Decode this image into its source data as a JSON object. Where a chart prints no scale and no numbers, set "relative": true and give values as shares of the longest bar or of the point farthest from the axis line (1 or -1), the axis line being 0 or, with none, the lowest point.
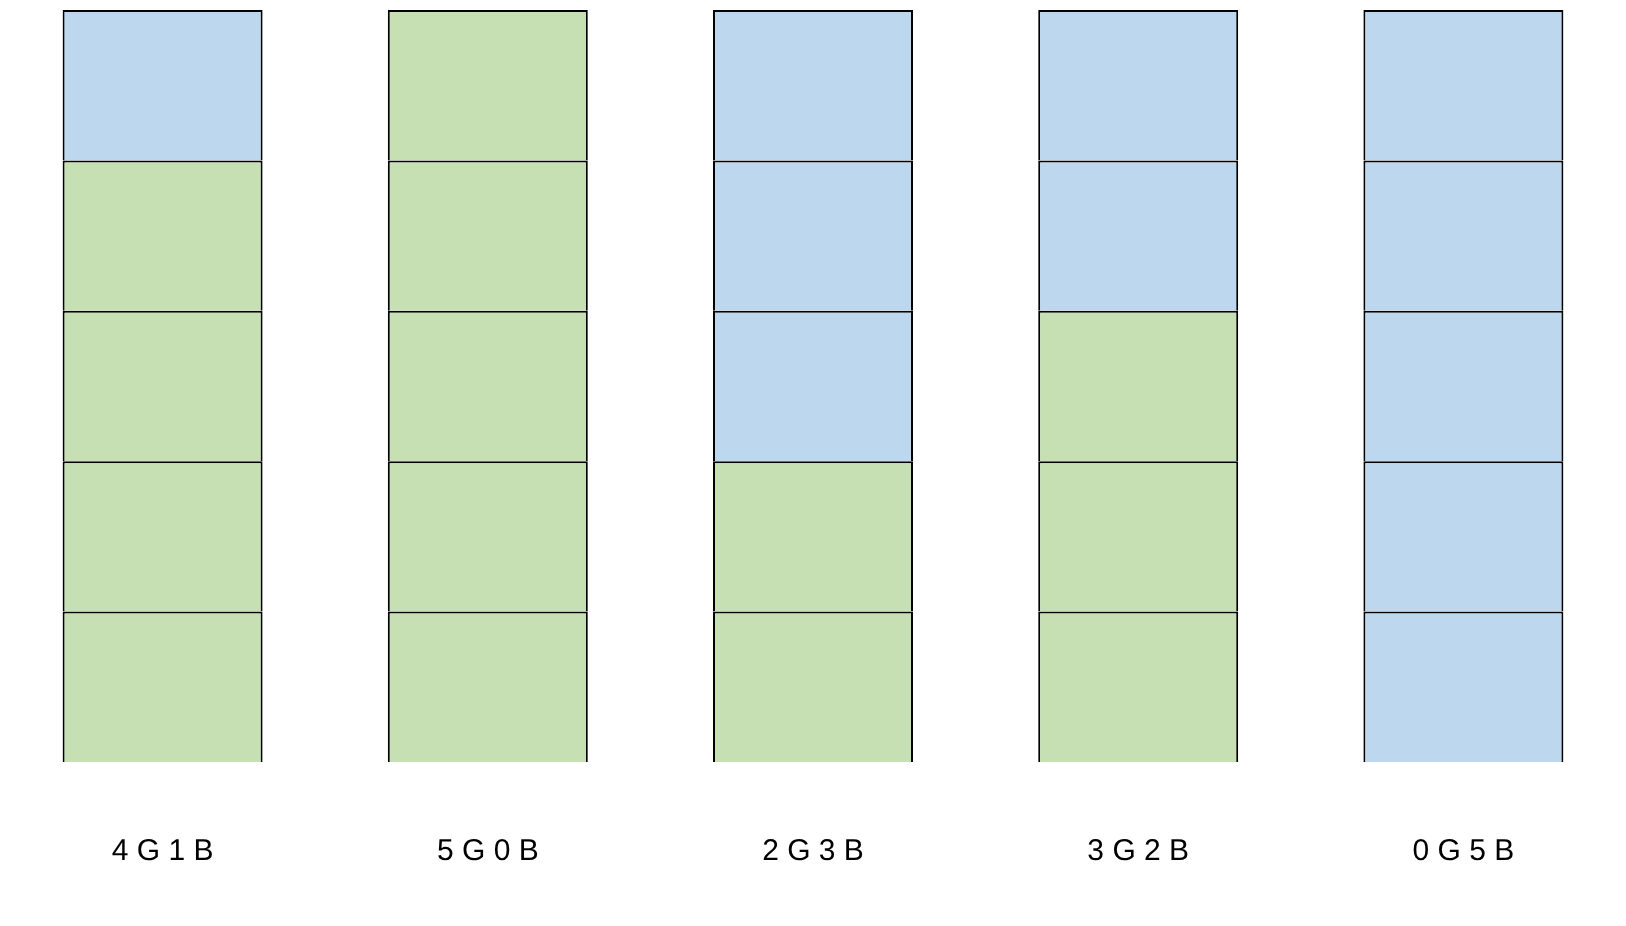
{
  "chart_data": {
    "type": "bar",
    "stacked": true,
    "relative": true,
    "grid": false,
    "legend": false,
    "categories": [
      "4 G 1 B",
      "5 G 0 B",
      "2 G 3 B",
      "3 G 2 B",
      "0 G 5 B"
    ],
    "series": [
      {
        "values": [
          0.2,
          0.2,
          0.2,
          0.2,
          0.2
        ],
        "colors": [
          "#c6e0b4",
          "#c6e0b4",
          "#c6e0b4",
          "#c6e0b4",
          "#bdd7ee"
        ]
      },
      {
        "values": [
          0.2,
          0.2,
          0.2,
          0.2,
          0.2
        ],
        "colors": [
          "#c6e0b4",
          "#c6e0b4",
          "#c6e0b4",
          "#c6e0b4",
          "#bdd7ee"
        ]
      },
      {
        "values": [
          0.2,
          0.2,
          0.2,
          0.2,
          0.2
        ],
        "colors": [
          "#c6e0b4",
          "#c6e0b4",
          "#bdd7ee",
          "#c6e0b4",
          "#bdd7ee"
        ]
      },
      {
        "values": [
          0.2,
          0.2,
          0.2,
          0.2,
          0.2
        ],
        "colors": [
          "#c6e0b4",
          "#c6e0b4",
          "#bdd7ee",
          "#bdd7ee",
          "#bdd7ee"
        ]
      },
      {
        "values": [
          0.2,
          0.2,
          0.2,
          0.2,
          0.2
        ],
        "colors": [
          "#bdd7ee",
          "#c6e0b4",
          "#bdd7ee",
          "#bdd7ee",
          "#bdd7ee"
        ]
      }
    ]
  }
}
